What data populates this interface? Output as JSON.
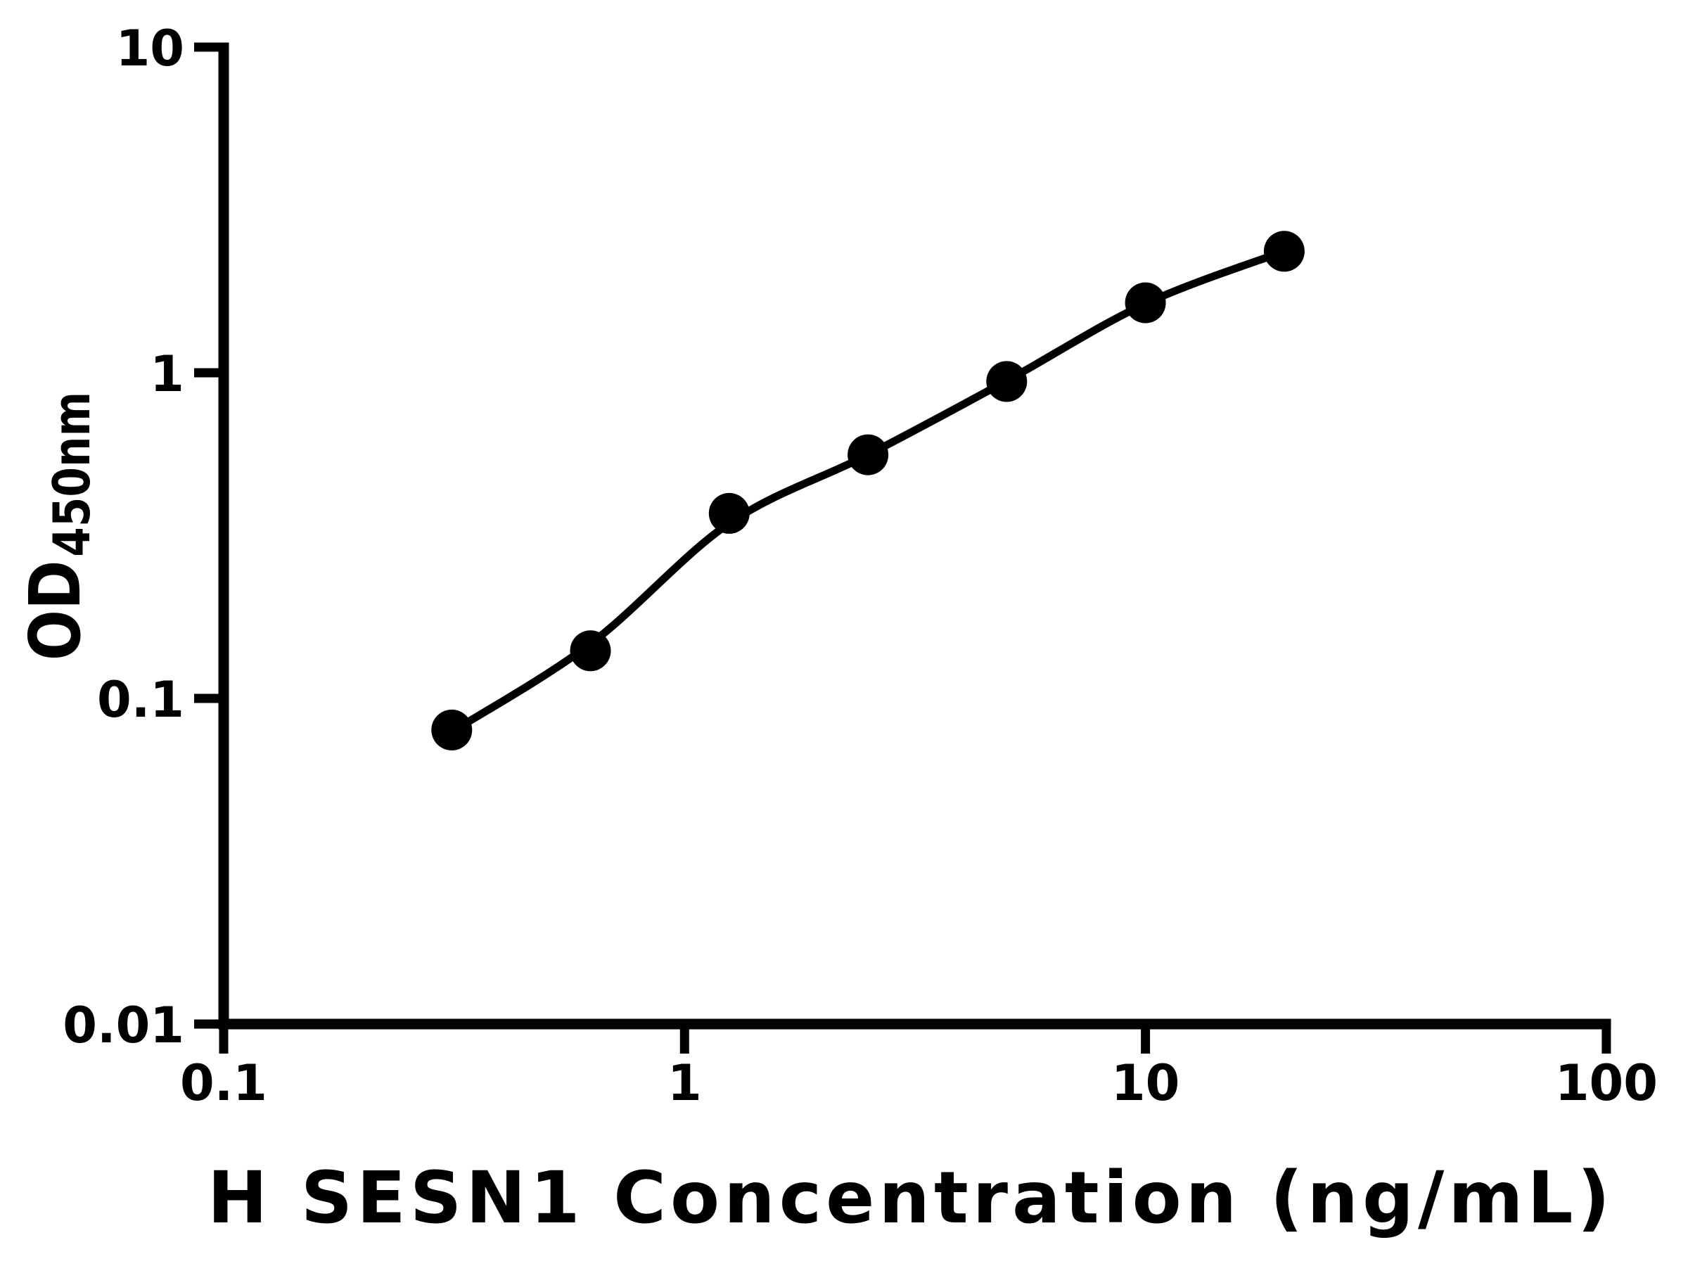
{
  "chart_data": {
    "type": "scatter",
    "title": "",
    "xlabel": "H SESN1 Concentration (ng/mL)",
    "ylabel_main": "OD",
    "ylabel_sub": "450nm",
    "x_scale": "log",
    "y_scale": "log",
    "xlim": [
      0.1,
      100
    ],
    "ylim": [
      0.01,
      10
    ],
    "grid": false,
    "legend": false,
    "background_color": "#ffffff",
    "accent_color": "#000000",
    "x_ticks": [
      {
        "value": 0.1,
        "label": "0.1"
      },
      {
        "value": 1,
        "label": "1"
      },
      {
        "value": 10,
        "label": "10"
      },
      {
        "value": 100,
        "label": "100"
      }
    ],
    "y_ticks": [
      {
        "value": 10,
        "label": "10"
      },
      {
        "value": 1,
        "label": "1"
      },
      {
        "value": 0.1,
        "label": "0.1"
      },
      {
        "value": 0.01,
        "label": "0.01"
      }
    ],
    "series": [
      {
        "name": "standard-points",
        "type": "scatter",
        "marker": "filled-circle",
        "color": "#000000",
        "x": [
          0.3125,
          0.625,
          1.25,
          2.5,
          5,
          10,
          20
        ],
        "y": [
          0.08,
          0.14,
          0.37,
          0.56,
          0.94,
          1.64,
          2.36
        ]
      },
      {
        "name": "fitted-curve",
        "type": "line",
        "color": "#000000",
        "x": [
          0.3125,
          0.625,
          1.25,
          2.5,
          5,
          10,
          20
        ],
        "y": [
          0.079,
          0.147,
          0.345,
          0.56,
          0.945,
          1.63,
          2.36
        ]
      }
    ]
  }
}
